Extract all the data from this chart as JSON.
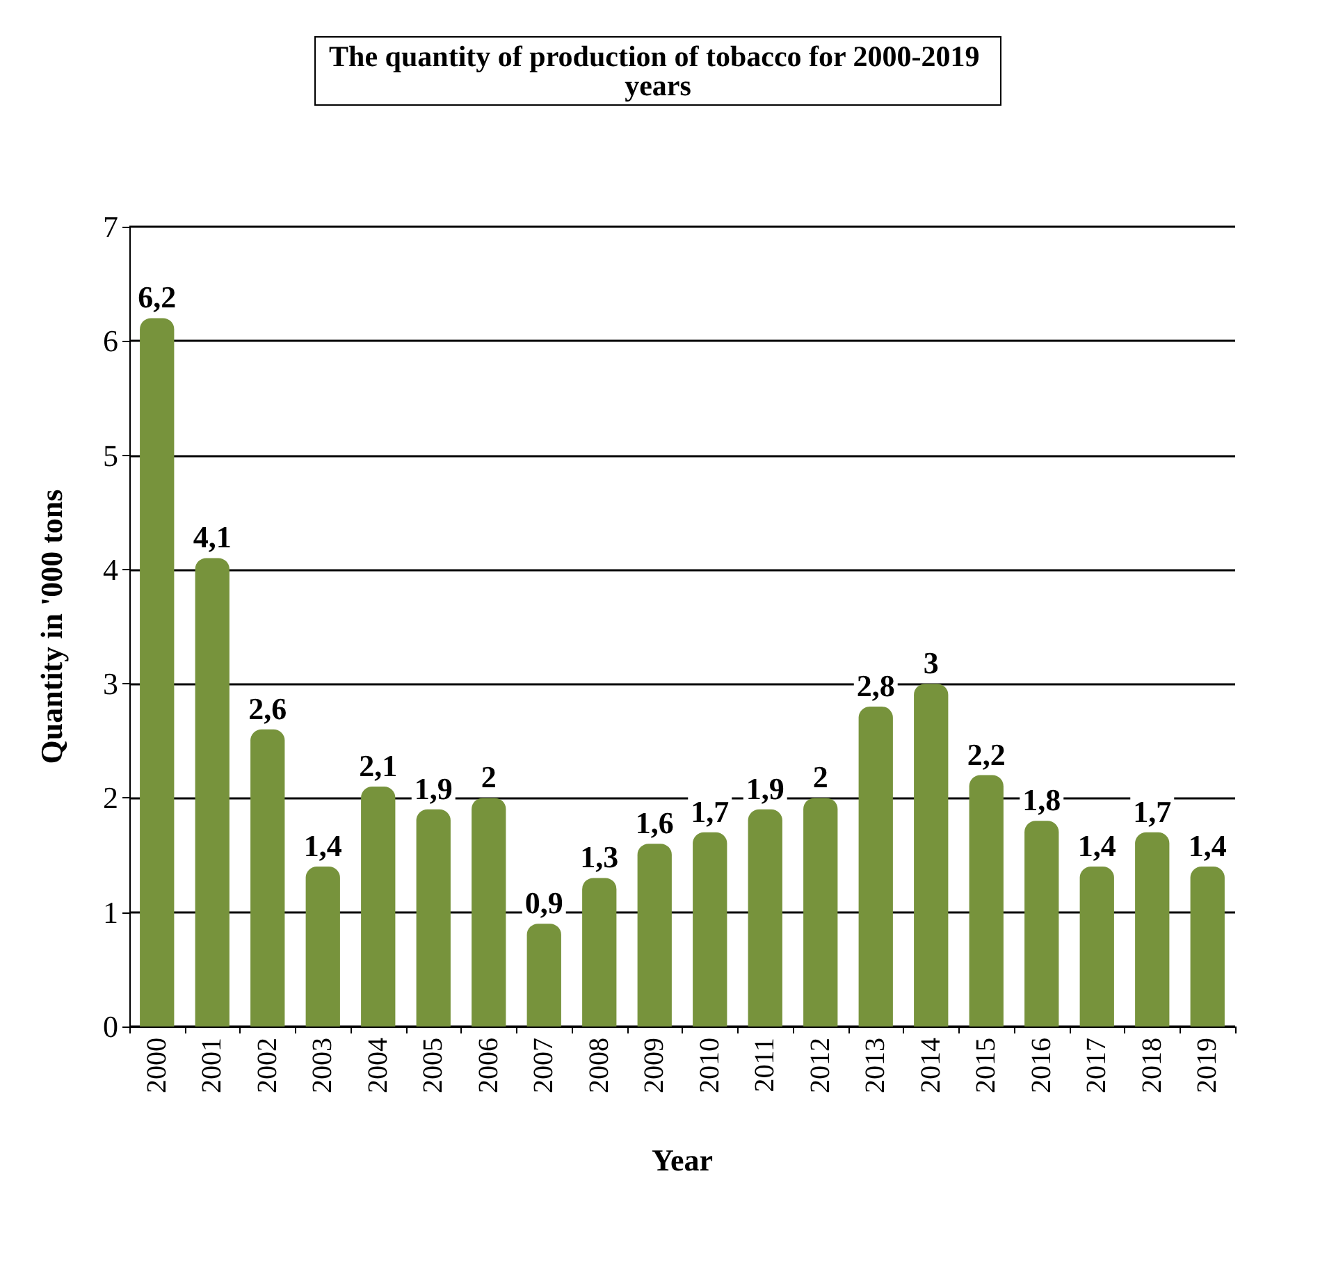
{
  "chart_data": {
    "type": "bar",
    "title": "The quantity of production of tobacco for 2000-2019 years",
    "xlabel": "Year",
    "ylabel": "Quantity in '000 tons",
    "categories": [
      "2000",
      "2001",
      "2002",
      "2003",
      "2004",
      "2005",
      "2006",
      "2007",
      "2008",
      "2009",
      "2010",
      "2011",
      "2012",
      "2013",
      "2014",
      "2015",
      "2016",
      "2017",
      "2018",
      "2019"
    ],
    "values": [
      6.2,
      4.1,
      2.6,
      1.4,
      2.1,
      1.9,
      2,
      0.9,
      1.3,
      1.6,
      1.7,
      1.9,
      2,
      2.8,
      3,
      2.2,
      1.8,
      1.4,
      1.7,
      1.4
    ],
    "value_labels": [
      "6,2",
      "4,1",
      "2,6",
      "1,4",
      "2,1",
      "1,9",
      "2",
      "0,9",
      "1,3",
      "1,6",
      "1,7",
      "1,9",
      "2",
      "2,8",
      "3",
      "2,2",
      "1,8",
      "1,4",
      "1,7",
      "1,4"
    ],
    "color": "#77933c",
    "ylim": [
      0,
      7
    ],
    "yticks": [
      0,
      1,
      2,
      3,
      4,
      5,
      6,
      7
    ],
    "grid": "y"
  }
}
